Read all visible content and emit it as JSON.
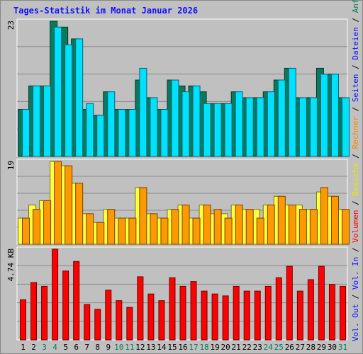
{
  "chart_data": [
    {
      "type": "bar",
      "title": "Tages-Statistik im Monat Januar 2026",
      "categories": [
        "1",
        "2",
        "3",
        "4",
        "5",
        "6",
        "7",
        "8",
        "9",
        "10",
        "11",
        "12",
        "13",
        "14",
        "15",
        "16",
        "17",
        "18",
        "19",
        "20",
        "21",
        "22",
        "23",
        "24",
        "25",
        "26",
        "27",
        "28",
        "29",
        "30",
        "31"
      ],
      "weekend_days": [
        "3",
        "4",
        "10",
        "11",
        "17",
        "18",
        "24",
        "25",
        "31"
      ],
      "y_tick_label": "23",
      "ylim": [
        0,
        23
      ],
      "series": [
        {
          "name": "Anfragen",
          "color": "#0a7a5e",
          "values": [
            8,
            12,
            12,
            23,
            22,
            20,
            8,
            7,
            11,
            8,
            8,
            13,
            10,
            8,
            13,
            12,
            12,
            11,
            9,
            9,
            11,
            10,
            10,
            11,
            13,
            15,
            10,
            10,
            15,
            14,
            10
          ]
        },
        {
          "name": "Dateien",
          "color": "#00e0ff",
          "values": [
            8,
            12,
            12,
            22,
            19,
            20,
            9,
            7,
            11,
            8,
            8,
            15,
            10,
            8,
            13,
            11,
            12,
            9,
            9,
            9,
            11,
            10,
            10,
            11,
            13,
            15,
            10,
            10,
            14,
            14,
            10
          ]
        }
      ],
      "axis_caption": [
        {
          "text": "Seiten",
          "color": "#1010ff"
        },
        {
          "text": "Dateien",
          "color": "#1010ff"
        },
        {
          "text": "Anfragen",
          "color": "#0a7a5e"
        }
      ]
    },
    {
      "type": "bar",
      "y_tick_label": "19",
      "ylim": [
        0,
        19
      ],
      "series": [
        {
          "name": "Besuche",
          "color": "#ffff40",
          "values": [
            6,
            9,
            10,
            19,
            18,
            14,
            7,
            5,
            8,
            6,
            6,
            13,
            7,
            6,
            8,
            9,
            6,
            9,
            7,
            7,
            9,
            8,
            8,
            9,
            11,
            9,
            9,
            8,
            12,
            11,
            8
          ]
        },
        {
          "name": "Rechner",
          "color": "#ff9900",
          "values": [
            6,
            8,
            10,
            19,
            18,
            14,
            7,
            5,
            8,
            6,
            6,
            13,
            7,
            6,
            8,
            9,
            6,
            9,
            8,
            6,
            9,
            8,
            6,
            9,
            11,
            9,
            8,
            8,
            13,
            11,
            8
          ]
        }
      ],
      "axis_caption": [
        {
          "text": "Besuche",
          "color": "#e8e800"
        },
        {
          "text": "Rechner",
          "color": "#ff8800"
        }
      ]
    },
    {
      "type": "bar",
      "y_tick_label": "4.74 KB",
      "ylim": [
        0,
        4.74
      ],
      "series": [
        {
          "name": "Volumen",
          "color": "#ff0000",
          "values": [
            2.1,
            3.0,
            2.8,
            4.74,
            3.6,
            4.1,
            1.85,
            1.6,
            2.6,
            2.05,
            1.7,
            3.3,
            2.4,
            2.05,
            3.25,
            2.8,
            3.05,
            2.55,
            2.4,
            2.3,
            2.8,
            2.55,
            2.55,
            2.8,
            3.25,
            3.85,
            2.55,
            3.15,
            3.85,
            2.9,
            2.8
          ]
        }
      ],
      "axis_caption": [
        {
          "text": "Vol. Out",
          "color": "#1010ff"
        },
        {
          "text": "Vol. In",
          "color": "#1010ff"
        },
        {
          "text": "Volumen",
          "color": "#ff0000"
        }
      ]
    }
  ]
}
